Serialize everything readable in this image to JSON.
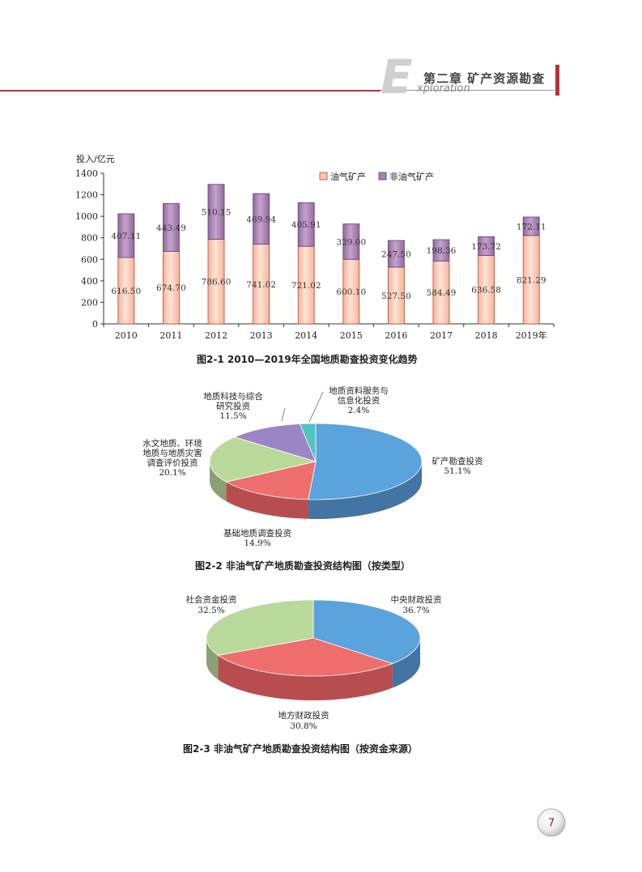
{
  "header": {
    "letter": "E",
    "word": "xploration",
    "chapter": "第二章  矿产资源勘查"
  },
  "figure1": {
    "caption": "图2-1   2010—2019年全国地质勘查投资变化趋势"
  },
  "figure2": {
    "caption": "图2-2   非油气矿产地质勘查投资结构图（按类型）"
  },
  "figure3": {
    "caption": "图2-3   非油气矿产地质勘查投资结构图（按资金来源）"
  },
  "page_number": "7",
  "colors": {
    "accent_red": "#b8323a",
    "oil": "#f8c6b0",
    "nonoil": "#a882b2",
    "pie_blue": "#5aa3dc",
    "pie_red": "#ee6e6e",
    "pie_green": "#b9d99a",
    "pie_purple": "#9b85c4",
    "pie_teal": "#4fc4c2"
  },
  "chart_data": [
    {
      "type": "bar",
      "stacked": true,
      "ylabel": "投入/亿元",
      "ylim": [
        0,
        1400
      ],
      "yticks": [
        0,
        200,
        400,
        600,
        800,
        1000,
        1200,
        1400
      ],
      "categories": [
        "2010",
        "2011",
        "2012",
        "2013",
        "2014",
        "2015",
        "2016",
        "2017",
        "2018",
        "2019年"
      ],
      "series": [
        {
          "name": "油气矿产",
          "values": [
            616.5,
            674.7,
            786.6,
            741.02,
            721.02,
            600.1,
            527.5,
            584.49,
            636.58,
            821.29
          ],
          "labels": [
            "616.50",
            "674.70",
            "786.60",
            "741.02",
            "721.02",
            "600.10",
            "527.50",
            "584.49",
            "636.58",
            "821.29"
          ]
        },
        {
          "name": "非油气矿产",
          "values": [
            407.11,
            443.49,
            510.15,
            469.94,
            405.91,
            329.0,
            247.5,
            198.36,
            173.72,
            172.11
          ],
          "labels": [
            "407.11",
            "443.49",
            "510.15",
            "469.94",
            "405.91",
            "329.00",
            "247.50",
            "198.36",
            "173.72",
            "172.11"
          ]
        }
      ],
      "legend": "top-right",
      "grid": false
    },
    {
      "type": "pie",
      "style": "3d",
      "slices": [
        {
          "name": "矿产勘查投资",
          "value": 51.1,
          "label": "51.1%"
        },
        {
          "name": "基础地质调查投资",
          "value": 14.9,
          "label": "14.9%"
        },
        {
          "name": "水文地质、环境地质与地质灾害调查评价投资",
          "value": 20.1,
          "label": "20.1%"
        },
        {
          "name": "地质科技与综合研究投资",
          "value": 11.5,
          "label": "11.5%"
        },
        {
          "name": "地质资料服务与信息化投资",
          "value": 2.4,
          "label": "2.4%"
        }
      ],
      "label_lines": [
        [
          "矿产勘查投资"
        ],
        [
          "基础地质调查投资"
        ],
        [
          "水文地质、环境",
          "地质与地质灾害",
          "调查评价投资"
        ],
        [
          "地质科技与综合",
          "研究投资"
        ],
        [
          "地质资料服务与",
          "信息化投资"
        ]
      ]
    },
    {
      "type": "pie",
      "style": "3d",
      "slices": [
        {
          "name": "中央财政投资",
          "value": 36.7,
          "label": "36.7%"
        },
        {
          "name": "地方财政投资",
          "value": 30.8,
          "label": "30.8%"
        },
        {
          "name": "社会资金投资",
          "value": 32.5,
          "label": "32.5%"
        }
      ],
      "label_lines": [
        [
          "中央财政投资"
        ],
        [
          "地方财政投资"
        ],
        [
          "社会资金投资"
        ]
      ]
    }
  ]
}
